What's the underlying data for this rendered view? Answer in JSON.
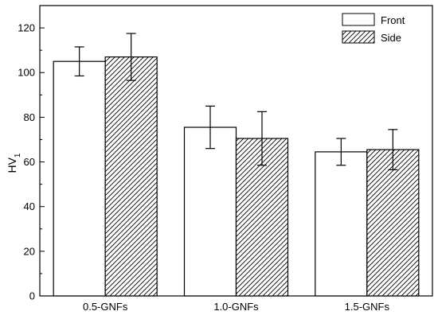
{
  "chart_data": {
    "type": "bar",
    "title": "",
    "xlabel": "",
    "ylabel": "HV",
    "ylabel_subscript": "1",
    "categories": [
      "0.5-GNFs",
      "1.0-GNFs",
      "1.5-GNFs"
    ],
    "ylim": [
      0,
      130
    ],
    "yticks": [
      0,
      20,
      40,
      60,
      80,
      100,
      120
    ],
    "grid": false,
    "legend_position": "top-right",
    "series": [
      {
        "name": "Front",
        "fill": "solid-white",
        "values": [
          105,
          75.5,
          64.5
        ],
        "errors": [
          6.5,
          9.5,
          6.0
        ]
      },
      {
        "name": "Side",
        "fill": "diagonal-hatch",
        "values": [
          107,
          70.5,
          65.5
        ],
        "errors": [
          10.5,
          12.0,
          9.0
        ]
      }
    ],
    "colors": {
      "bar_edge": "#000000",
      "bar_fill": "#ffffff",
      "hatch": "#000000"
    }
  }
}
